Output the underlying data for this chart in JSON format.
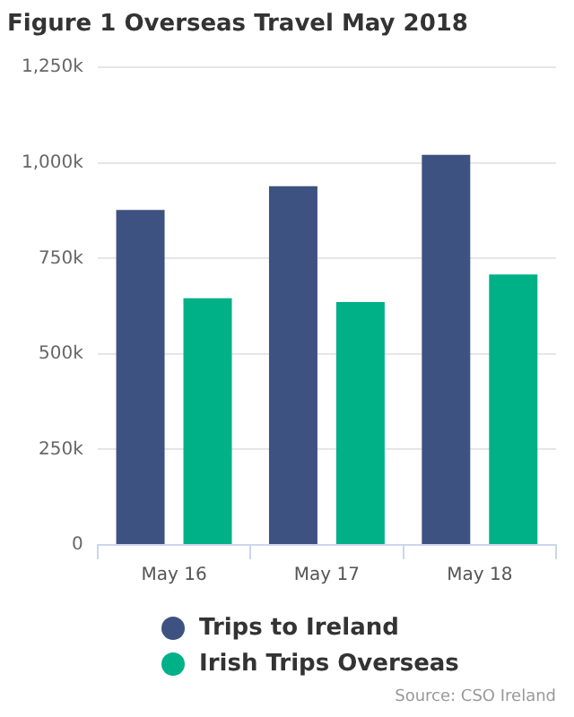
{
  "chart_data": {
    "type": "bar",
    "title": "Figure 1 Overseas Travel May 2018",
    "categories": [
      "May 16",
      "May 17",
      "May 18"
    ],
    "series": [
      {
        "name": "Trips to Ireland",
        "color": "#3e5281",
        "values": [
          877000,
          939000,
          1021000
        ]
      },
      {
        "name": "Irish Trips Overseas",
        "color": "#00b087",
        "values": [
          646000,
          636000,
          708000
        ]
      }
    ],
    "ylim": [
      0,
      1250000
    ],
    "yticks": [
      {
        "value": 0,
        "label": "0"
      },
      {
        "value": 250000,
        "label": "250k"
      },
      {
        "value": 500000,
        "label": "500k"
      },
      {
        "value": 750000,
        "label": "750k"
      },
      {
        "value": 1000000,
        "label": "1,000k"
      },
      {
        "value": 1250000,
        "label": "1,250k"
      }
    ],
    "grid": "y",
    "legend": "bottom",
    "annotations": [
      "Source: CSO Ireland"
    ]
  }
}
